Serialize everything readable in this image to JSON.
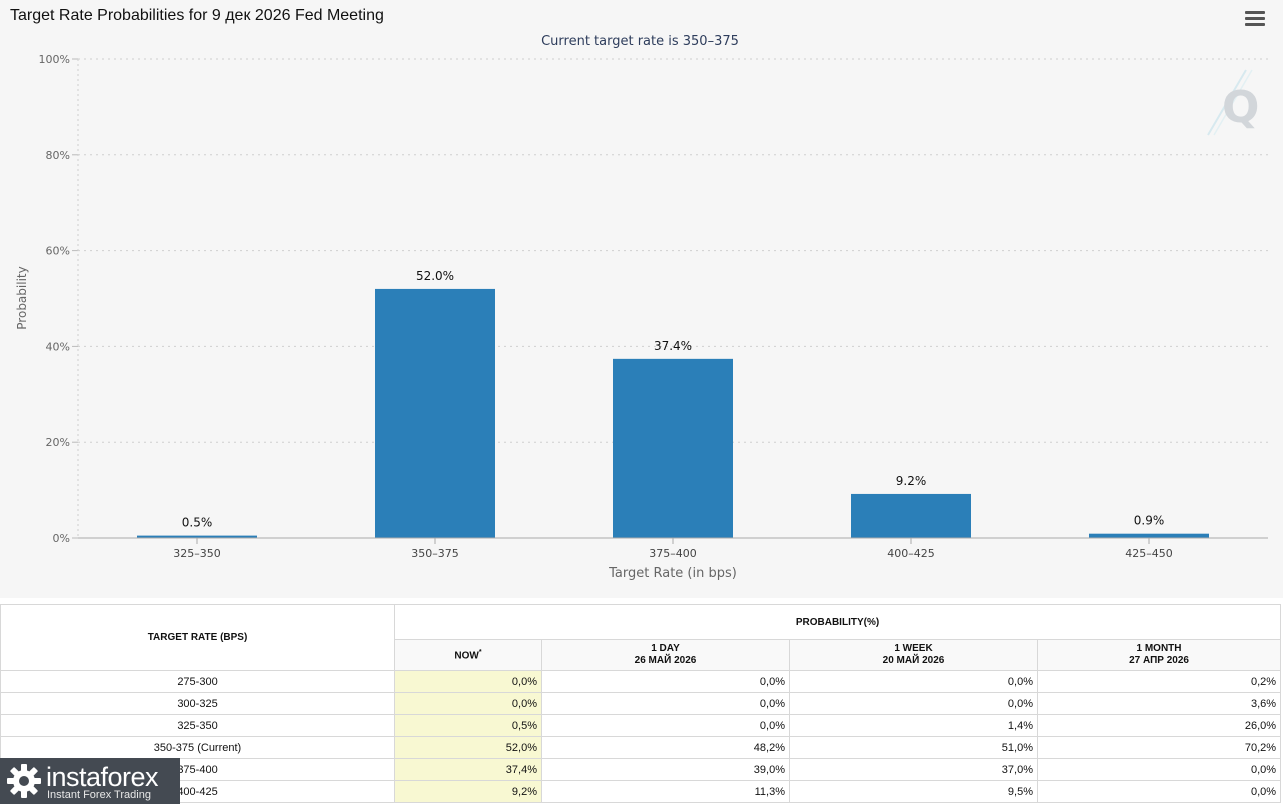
{
  "page": {
    "title": "Target Rate Probabilities for 9 дек 2026 Fed Meeting",
    "subtitle": "Current target rate is 350–375"
  },
  "chart_data": {
    "type": "bar",
    "title": "Target Rate Probabilities for 9 дек 2026 Fed Meeting",
    "subtitle": "Current target rate is 350–375",
    "xlabel": "Target Rate (in bps)",
    "ylabel": "Probability",
    "categories": [
      "325–350",
      "350–375",
      "375–400",
      "400–425",
      "425–450"
    ],
    "values": [
      0.5,
      52.0,
      37.4,
      9.2,
      0.9
    ],
    "data_labels": [
      "0.5%",
      "52.0%",
      "37.4%",
      "9.2%",
      "0.9%"
    ],
    "ylim": [
      0,
      100
    ],
    "yticks": [
      0,
      20,
      40,
      60,
      80,
      100
    ],
    "ytick_labels": [
      "0%",
      "20%",
      "40%",
      "60%",
      "80%",
      "100%"
    ],
    "grid": true,
    "bar_color": "#2b7fb8"
  },
  "table": {
    "rate_header": "TARGET RATE (BPS)",
    "prob_header": "PROBABILITY(%)",
    "columns": [
      {
        "line1": "NOW",
        "line2": "",
        "marker": "*"
      },
      {
        "line1": "1 DAY",
        "line2": "26 МАЙ 2026"
      },
      {
        "line1": "1 WEEK",
        "line2": "20 МАЙ 2026"
      },
      {
        "line1": "1 MONTH",
        "line2": "27 АПР 2026"
      }
    ],
    "rows": [
      {
        "rate": "275-300",
        "now": "0,0%",
        "day": "0,0%",
        "week": "0,0%",
        "month": "0,2%"
      },
      {
        "rate": "300-325",
        "now": "0,0%",
        "day": "0,0%",
        "week": "0,0%",
        "month": "3,6%"
      },
      {
        "rate": "325-350",
        "now": "0,5%",
        "day": "0,0%",
        "week": "1,4%",
        "month": "26,0%"
      },
      {
        "rate": "350-375 (Current)",
        "now": "52,0%",
        "day": "48,2%",
        "week": "51,0%",
        "month": "70,2%"
      },
      {
        "rate": "375-400",
        "now": "37,4%",
        "day": "39,0%",
        "week": "37,0%",
        "month": "0,0%"
      },
      {
        "rate": "400-425",
        "now": "9,2%",
        "day": "11,3%",
        "week": "9,5%",
        "month": "0,0%"
      }
    ]
  },
  "brand": {
    "name": "instaforex",
    "tagline": "Instant Forex Trading"
  },
  "icons": {
    "menu": "hamburger-menu-icon",
    "watermark": "q-logo-watermark",
    "brand_logo": "gear-logo-icon"
  }
}
